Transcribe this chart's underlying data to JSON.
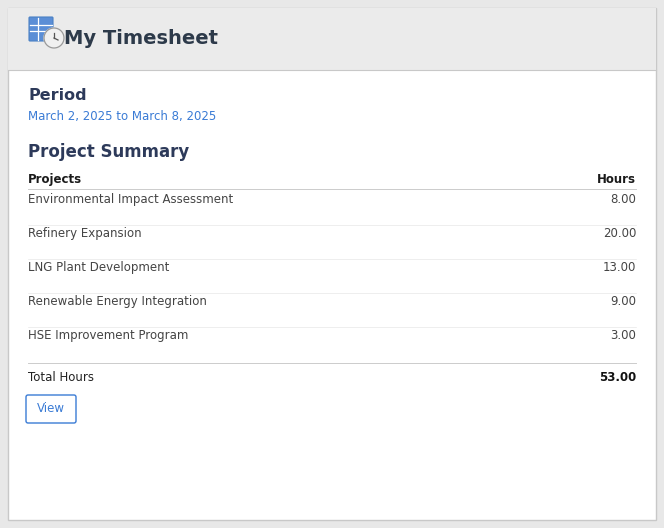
{
  "title": "My Timesheet",
  "period_label": "Period",
  "period_value": "March 2, 2025 to March 8, 2025",
  "section_title": "Project Summary",
  "col_projects": "Projects",
  "col_hours": "Hours",
  "projects": [
    {
      "name": "Environmental Impact Assessment",
      "hours": "8.00"
    },
    {
      "name": "Refinery Expansion",
      "hours": "20.00"
    },
    {
      "name": "LNG Plant Development",
      "hours": "13.00"
    },
    {
      "name": "Renewable Energy Integration",
      "hours": "9.00"
    },
    {
      "name": "HSE Improvement Program",
      "hours": "3.00"
    }
  ],
  "total_label": "Total Hours",
  "total_hours": "53.00",
  "button_label": "View",
  "bg_header": "#ebebeb",
  "bg_body": "#ffffff",
  "outer_bg": "#e8e8e8",
  "border_color": "#c8c8c8",
  "header_title_color": "#2d3a4a",
  "period_label_color": "#2d3a5a",
  "period_value_color": "#3a7bd5",
  "section_title_color": "#2d3a5a",
  "col_header_color": "#1a1a1a",
  "row_text_color": "#444444",
  "total_label_color": "#222222",
  "total_hours_color": "#111111",
  "divider_color": "#cccccc",
  "button_text_color": "#3a7bd5",
  "button_border_color": "#3a7bd5",
  "icon_blue": "#5b8ed6",
  "icon_light_blue": "#7aaae8",
  "figw": 6.64,
  "figh": 5.28,
  "dpi": 100
}
